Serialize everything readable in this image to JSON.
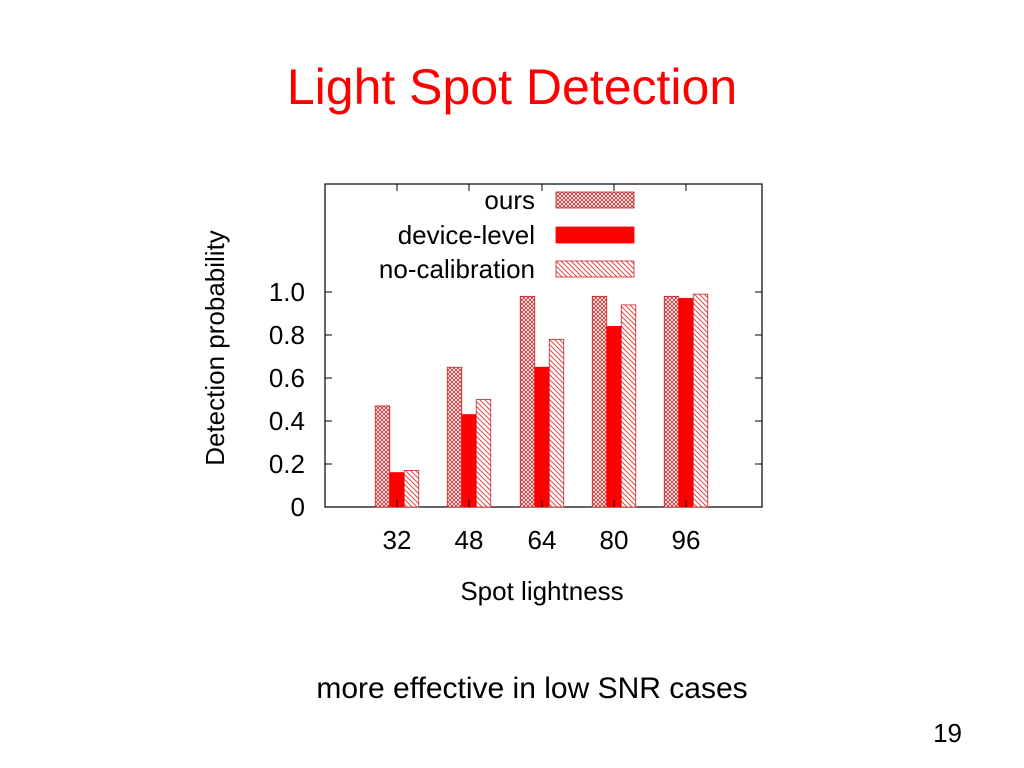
{
  "slide": {
    "title": "Light Spot Detection",
    "caption": "more effective in low SNR cases",
    "page_number": "19"
  },
  "chart_data": {
    "type": "bar",
    "xlabel": "Spot lightness",
    "ylabel": "Detection probability",
    "categories": [
      "32",
      "48",
      "64",
      "80",
      "96"
    ],
    "ylim": [
      0,
      1.0
    ],
    "yticks": [
      "0",
      "0.2",
      "0.4",
      "0.6",
      "0.8",
      "1.0"
    ],
    "grid": false,
    "legend_position": "top-right",
    "series": [
      {
        "name": "ours",
        "values": [
          0.47,
          0.65,
          0.98,
          0.98,
          0.98
        ],
        "color": "#ff0000",
        "pattern": "crosshatch"
      },
      {
        "name": "device-level",
        "values": [
          0.16,
          0.43,
          0.65,
          0.84,
          0.97
        ],
        "color": "#ff0000",
        "pattern": "solid"
      },
      {
        "name": "no-calibration",
        "values": [
          0.17,
          0.5,
          0.78,
          0.94,
          0.99
        ],
        "color": "#ff0000",
        "pattern": "diagonal"
      }
    ]
  }
}
